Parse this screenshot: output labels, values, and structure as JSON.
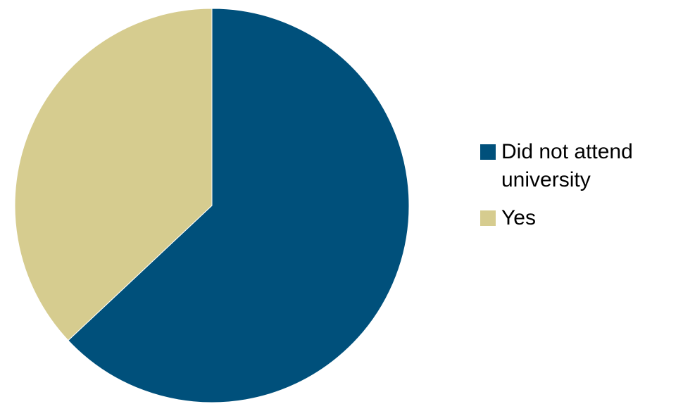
{
  "chart_data": {
    "type": "pie",
    "title": "",
    "slices": [
      {
        "label": "Did not attend university",
        "value": 63,
        "color": "#00507B"
      },
      {
        "label": "Yes",
        "value": 37,
        "color": "#D6CC8F"
      }
    ],
    "start_angle": "12 o'clock",
    "direction": "clockwise",
    "legend_position": "right"
  }
}
